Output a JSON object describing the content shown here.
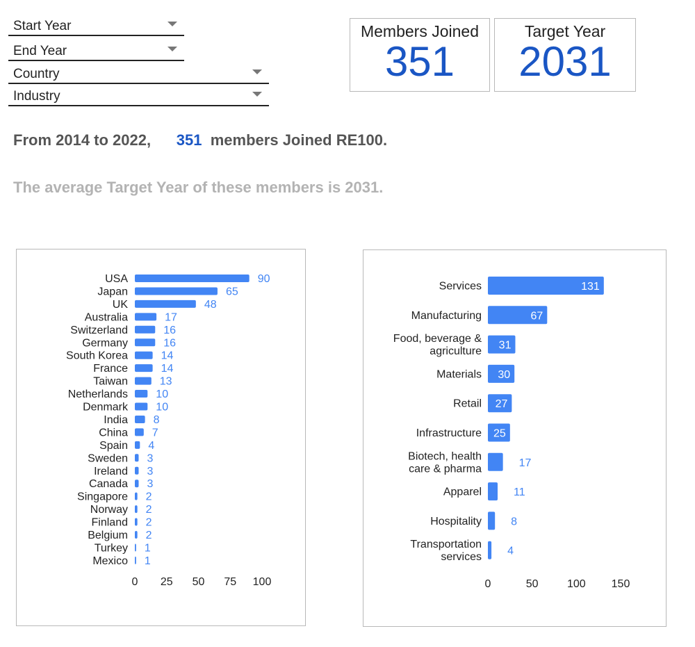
{
  "filters": {
    "start_year": "Start Year",
    "end_year": "End Year",
    "country": "Country",
    "industry": "Industry"
  },
  "scorecards": {
    "members_joined": {
      "title": "Members Joined",
      "value": "351"
    },
    "target_year": {
      "title": "Target Year",
      "value": "2031"
    }
  },
  "summary": {
    "prefix": "From 2014 to 2022,",
    "count": "351",
    "suffix": "members Joined RE100.",
    "average": "The average Target Year of these members is 2031."
  },
  "colors": {
    "bar": "#4285f4",
    "accent": "#1a56c4",
    "label": "#4285f4"
  },
  "chart_data": [
    {
      "type": "bar",
      "orientation": "horizontal",
      "title": "",
      "xlabel": "",
      "ylabel": "",
      "xlim": [
        0,
        100
      ],
      "xticks": [
        0,
        25,
        50,
        75,
        100
      ],
      "categories": [
        "USA",
        "Japan",
        "UK",
        "Australia",
        "Switzerland",
        "Germany",
        "South Korea",
        "France",
        "Taiwan",
        "Netherlands",
        "Denmark",
        "India",
        "China",
        "Spain",
        "Sweden",
        "Ireland",
        "Canada",
        "Singapore",
        "Norway",
        "Finland",
        "Belgium",
        "Turkey",
        "Mexico"
      ],
      "values": [
        90,
        65,
        48,
        17,
        16,
        16,
        14,
        14,
        13,
        10,
        10,
        8,
        7,
        4,
        3,
        3,
        3,
        2,
        2,
        2,
        2,
        1,
        1
      ]
    },
    {
      "type": "bar",
      "orientation": "horizontal",
      "title": "",
      "xlabel": "",
      "ylabel": "",
      "xlim": [
        0,
        150
      ],
      "xticks": [
        0,
        50,
        100,
        150
      ],
      "categories": [
        [
          "Services"
        ],
        [
          "Manufacturing"
        ],
        [
          "Food, beverage &",
          "agriculture"
        ],
        [
          "Materials"
        ],
        [
          "Retail"
        ],
        [
          "Infrastructure"
        ],
        [
          "Biotech, health",
          "care & pharma"
        ],
        [
          "Apparel"
        ],
        [
          "Hospitality"
        ],
        [
          "Transportation",
          "services"
        ]
      ],
      "values": [
        131,
        67,
        31,
        30,
        27,
        25,
        17,
        11,
        8,
        4
      ]
    }
  ]
}
